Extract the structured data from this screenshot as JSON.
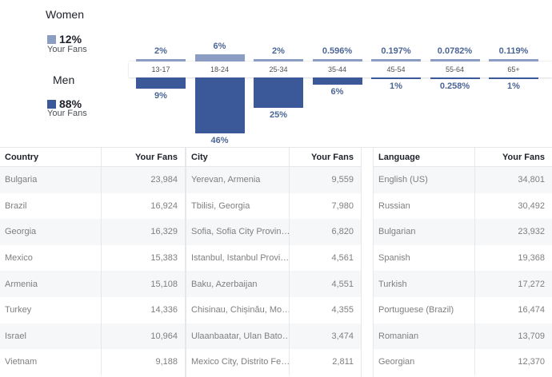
{
  "legend": {
    "women_title": "Women",
    "women_pct": "12%",
    "women_sub": "Your Fans",
    "men_title": "Men",
    "men_pct": "88%",
    "men_sub": "Your Fans",
    "women_color": "#8b9dc3",
    "men_color": "#3b5998"
  },
  "chart_data": {
    "type": "bar",
    "categories": [
      "13-17",
      "18-24",
      "25-34",
      "35-44",
      "45-54",
      "55-64",
      "65+"
    ],
    "series": [
      {
        "name": "Women",
        "values": [
          2,
          6,
          2,
          0.596,
          0.197,
          0.0782,
          0.119
        ],
        "labels": [
          "2%",
          "6%",
          "2%",
          "0.596%",
          "0.197%",
          "0.0782%",
          "0.119%"
        ]
      },
      {
        "name": "Men",
        "values": [
          9,
          46,
          25,
          6,
          1,
          0.258,
          1
        ],
        "labels": [
          "9%",
          "46%",
          "25%",
          "6%",
          "1%",
          "0.258%",
          "1%"
        ]
      }
    ]
  },
  "tables": {
    "country": {
      "col1": "Country",
      "col2": "Your Fans",
      "rows": [
        [
          "Bulgaria",
          "23,984"
        ],
        [
          "Brazil",
          "16,924"
        ],
        [
          "Georgia",
          "16,329"
        ],
        [
          "Mexico",
          "15,383"
        ],
        [
          "Armenia",
          "15,108"
        ],
        [
          "Turkey",
          "14,336"
        ],
        [
          "Israel",
          "10,964"
        ],
        [
          "Vietnam",
          "9,188"
        ]
      ]
    },
    "city": {
      "col1": "City",
      "col2": "Your Fans",
      "rows": [
        [
          "Yerevan, Armenia",
          "9,559"
        ],
        [
          "Tbilisi, Georgia",
          "7,980"
        ],
        [
          "Sofia, Sofia City Provin…",
          "6,820"
        ],
        [
          "Istanbul, Istanbul Provi…",
          "4,561"
        ],
        [
          "Baku, Azerbaijan",
          "4,551"
        ],
        [
          "Chisinau, Chișinău, Mo…",
          "4,355"
        ],
        [
          "Ulaanbaatar, Ulan Bato…",
          "3,474"
        ],
        [
          "Mexico City, Distrito Fe…",
          "2,811"
        ]
      ]
    },
    "language": {
      "col1": "Language",
      "col2": "Your Fans",
      "rows": [
        [
          "English (US)",
          "34,801"
        ],
        [
          "Russian",
          "30,492"
        ],
        [
          "Bulgarian",
          "23,932"
        ],
        [
          "Spanish",
          "19,368"
        ],
        [
          "Turkish",
          "17,272"
        ],
        [
          "Portuguese (Brazil)",
          "16,474"
        ],
        [
          "Romanian",
          "13,709"
        ],
        [
          "Georgian",
          "12,370"
        ]
      ]
    }
  }
}
